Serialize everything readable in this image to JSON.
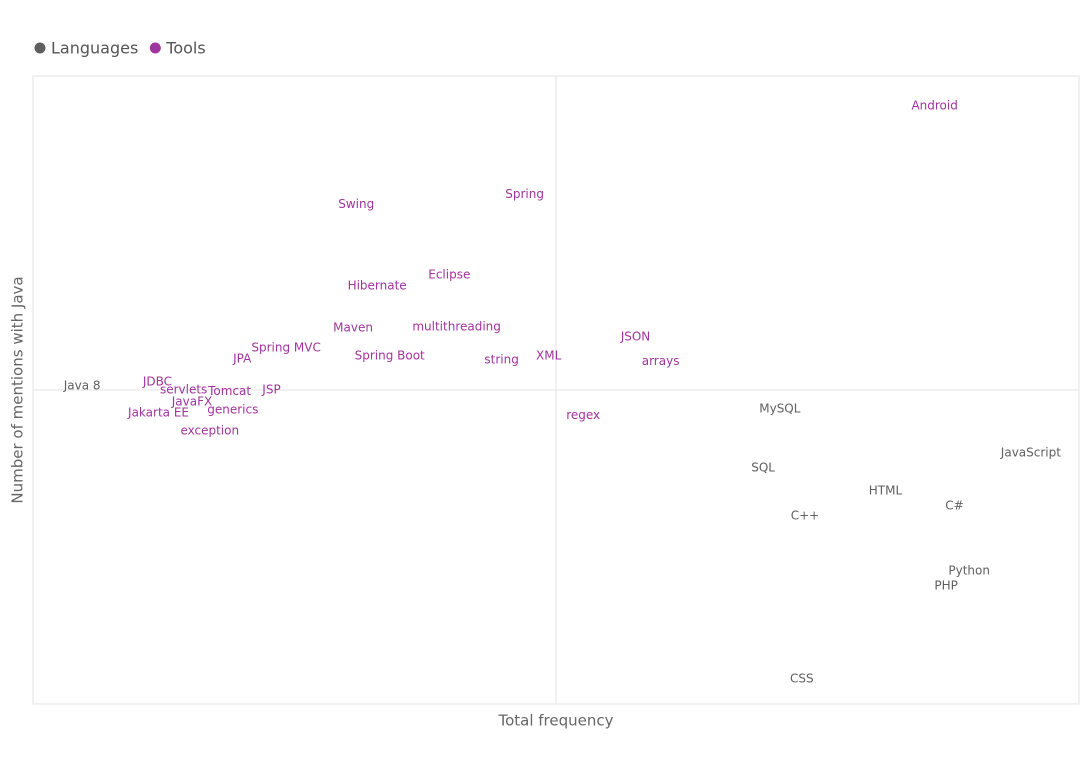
{
  "chart_data": {
    "type": "scatter",
    "x_label": "Total frequency",
    "y_label": "Number of mentions with Java",
    "xlim": [
      0,
      100
    ],
    "ylim": [
      0,
      100
    ],
    "xline": 50,
    "yline": 50,
    "series": [
      {
        "name": "Languages",
        "color": "#5f5f5f",
        "labels": [
          "Java 8",
          "MySQL",
          "SQL",
          "JavaScript",
          "HTML",
          "C#",
          "C++",
          "Python",
          "PHP",
          "CSS"
        ],
        "x": [
          4.7,
          71.4,
          69.8,
          95.4,
          81.5,
          88.1,
          73.8,
          89.5,
          87.3,
          73.5
        ],
        "values": [
          50.6,
          47.0,
          37.6,
          40.0,
          33.9,
          31.5,
          29.9,
          21.2,
          18.8,
          4.0
        ]
      },
      {
        "name": "Tools",
        "color": "#a0349e",
        "labels": [
          "Android",
          "Swing",
          "Spring",
          "Eclipse",
          "Hibernate",
          "Maven",
          "multithreading",
          "JSON",
          "Spring MVC",
          "JPA",
          "Spring Boot",
          "string",
          "XML",
          "arrays",
          "JDBC",
          "servlets",
          "Tomcat",
          "JSP",
          "JavaFX",
          "Jakarta EE",
          "generics",
          "regex",
          "exception"
        ],
        "x": [
          86.2,
          30.9,
          47.0,
          39.8,
          32.9,
          30.6,
          40.5,
          57.6,
          24.2,
          20.0,
          34.1,
          44.8,
          49.3,
          60.0,
          11.9,
          14.4,
          18.8,
          22.8,
          15.2,
          12.0,
          19.1,
          52.6,
          16.9
        ],
        "values": [
          95.2,
          79.5,
          81.1,
          68.3,
          66.6,
          59.9,
          60.0,
          58.4,
          56.7,
          54.9,
          55.4,
          54.8,
          55.4,
          54.5,
          51.3,
          50.0,
          49.8,
          50.0,
          48.1,
          46.3,
          46.8,
          45.9,
          43.5
        ]
      }
    ]
  }
}
